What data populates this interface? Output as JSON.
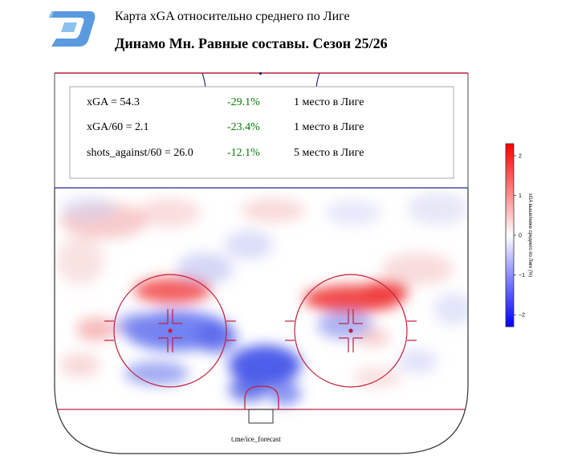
{
  "header": {
    "title": "Карта xGA относительно среднего по Лиге",
    "subtitle": "Динамо Мн. Равные составы. Сезон 25/26",
    "logo_colors": {
      "main": "#5a9be0",
      "light": "#8cc0ef"
    }
  },
  "stats": [
    {
      "metric": "xGA = 54.3",
      "delta": "-29.1%",
      "rank": "1 место в Лиге"
    },
    {
      "metric": "xGA/60 = 2.1",
      "delta": "-23.4%",
      "rank": "1 место в Лиге"
    },
    {
      "metric": "shots_against/60 = 26.0",
      "delta": "-12.1%",
      "rank": "5 место в Лиге"
    }
  ],
  "credit": "t.me/ice_forecast",
  "colors": {
    "rink_line": "#c0203a",
    "blue_line": "#1a2a8c",
    "positive": "#e8252b",
    "negative": "#2a3fe6",
    "delta_text": "#0a7a0a"
  },
  "chart_data": {
    "type": "heatmap",
    "title": "Карта xGA относительно среднего по Лиге",
    "subtitle": "Динамо Мн. Равные составы. Сезон 25/26",
    "colorbar": {
      "label": "xGA выше/ниже среднего по Лиге (%)",
      "ticks": [
        2,
        1,
        0,
        -1,
        -2
      ],
      "range": [
        -2.3,
        2.3
      ],
      "cmap": "bwr"
    },
    "hotspots": [
      {
        "region": "left-faceoff-circle-top",
        "value": 1.5
      },
      {
        "region": "left-faceoff-circle-center",
        "value": -1.4
      },
      {
        "region": "left-faceoff-circle-bottom",
        "value": -0.8
      },
      {
        "region": "right-faceoff-circle-top",
        "value": 1.8
      },
      {
        "region": "right-faceoff-circle-center",
        "value": -0.6
      },
      {
        "region": "slot",
        "value": -1.3
      },
      {
        "region": "crease",
        "value": -2.0
      },
      {
        "region": "left-point",
        "value": 0.5
      },
      {
        "region": "right-point",
        "value": -0.4
      },
      {
        "region": "left-boards-low",
        "value": 0.6
      }
    ]
  }
}
